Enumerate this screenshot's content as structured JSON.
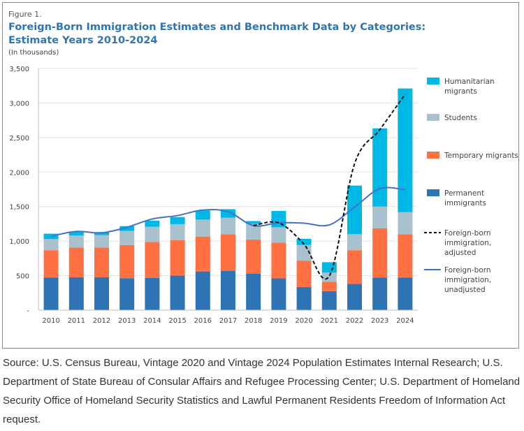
{
  "figure_label": "Figure 1.",
  "title_line1": "Foreign-Born Immigration Estimates and Benchmark Data by Categories:",
  "title_line2": "Estimate Years 2010-2024",
  "unit_note": "(In thousands)",
  "source": "Source: U.S. Census Bureau, Vintage 2020 and Vintage 2024 Population Estimates Internal Research; U.S. Department of State Bureau of Consular Affairs and Refugee Processing Center; U.S. Department of Homeland Security Office of Homeland Security Statistics and Lawful Permanent Residents Freedom of Information Act request.",
  "chart_data": {
    "type": "bar",
    "stacked": true,
    "title": "Foreign-Born Immigration Estimates and Benchmark Data by Categories: Estimate Years 2010-2024",
    "ylabel": "(In thousands)",
    "ylim": [
      0,
      3500
    ],
    "yticks": [
      0,
      500,
      1000,
      1500,
      2000,
      2500,
      3000,
      3500
    ],
    "ytick_labels": [
      "-",
      "500",
      "1,000",
      "1,500",
      "2,000",
      "2,500",
      "3,000",
      "3,500"
    ],
    "grid": true,
    "legend_position": "right",
    "categories": [
      "2010",
      "2011",
      "2012",
      "2013",
      "2014",
      "2015",
      "2016",
      "2017",
      "2018",
      "2019",
      "2020",
      "2021",
      "2022",
      "2023",
      "2024"
    ],
    "series": [
      {
        "name": "Permanent immigrants",
        "color": "#2e74b5",
        "values": [
          470,
          476,
          476,
          463,
          466,
          500,
          560,
          570,
          530,
          460,
          335,
          275,
          379,
          473,
          473
        ]
      },
      {
        "name": "Temporary migrants",
        "color": "#ff7043",
        "values": [
          398,
          429,
          429,
          480,
          520,
          513,
          506,
          530,
          493,
          519,
          382,
          137,
          489,
          711,
          627
        ]
      },
      {
        "name": "Students",
        "color": "#a9c0cd",
        "values": [
          161,
          175,
          182,
          204,
          221,
          232,
          245,
          238,
          227,
          221,
          226,
          131,
          232,
          316,
          319
        ]
      },
      {
        "name": "Humanitarian migrants",
        "color": "#00b8e6",
        "values": [
          78,
          60,
          43,
          70,
          88,
          103,
          131,
          124,
          40,
          236,
          90,
          151,
          704,
          1133,
          1791
        ]
      }
    ],
    "lines": [
      {
        "name": "Foreign-born immigration, adjusted",
        "color": "#111111",
        "style": "dashed",
        "categories": [
          "2018",
          "2019",
          "2020",
          "2021",
          "2022",
          "2023",
          "2024"
        ],
        "values": [
          1225,
          1265,
          955,
          493,
          2120,
          2615,
          3126
        ]
      },
      {
        "name": "Foreign-born immigration, unadjusted",
        "color": "#4472c4",
        "style": "solid",
        "categories": [
          "2010",
          "2011",
          "2012",
          "2013",
          "2014",
          "2015",
          "2016",
          "2017",
          "2018",
          "2019",
          "2020",
          "2021",
          "2022",
          "2023",
          "2024"
        ],
        "values": [
          1070,
          1140,
          1120,
          1200,
          1320,
          1370,
          1450,
          1425,
          1224,
          1265,
          1260,
          1234,
          1492,
          1760,
          1744
        ]
      }
    ],
    "legend": [
      {
        "label": "Humanitarian migrants",
        "kind": "box",
        "color": "#00b8e6"
      },
      {
        "label": "Students",
        "kind": "box",
        "color": "#a9c0cd"
      },
      {
        "label": "Temporary migrants",
        "kind": "box",
        "color": "#ff7043"
      },
      {
        "label": "Permanent immigrants",
        "kind": "box",
        "color": "#2e74b5"
      },
      {
        "label": "Foreign-born immigration, adjusted",
        "kind": "dash",
        "color": "#111111"
      },
      {
        "label": "Foreign-born immigration, unadjusted",
        "kind": "line",
        "color": "#4472c4"
      }
    ]
  }
}
